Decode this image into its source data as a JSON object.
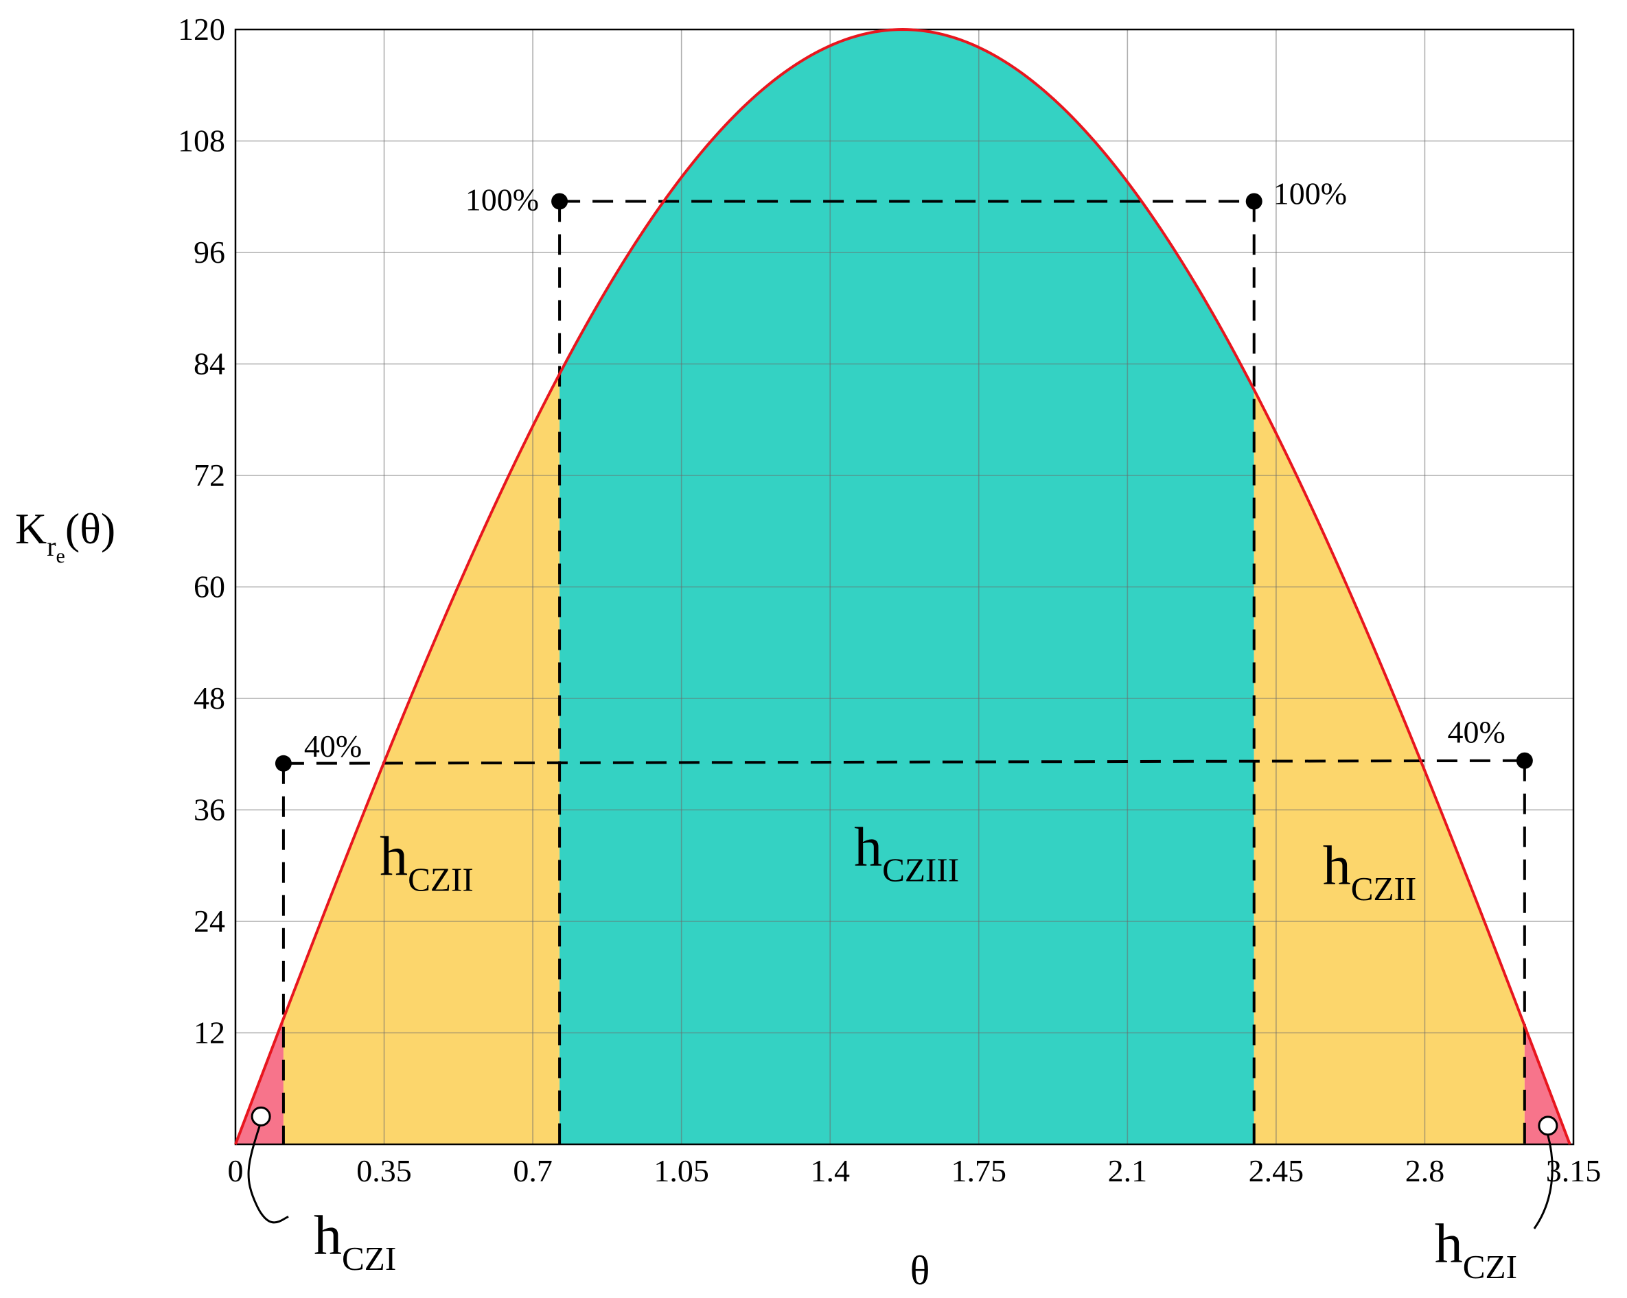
{
  "chart_data": {
    "type": "area",
    "title": "",
    "xlabel": "θ",
    "ylabel": {
      "base": "K",
      "sub": "r",
      "subsub": "e",
      "suffix": "(θ)"
    },
    "xlim": [
      0,
      3.15
    ],
    "ylim": [
      0,
      120
    ],
    "x_ticks": [
      0,
      0.35,
      0.7,
      1.05,
      1.4,
      1.75,
      2.1,
      2.45,
      2.8,
      3.15
    ],
    "x_tick_labels": [
      "0",
      "0.35",
      "0.7",
      "1.05",
      "1.4",
      "1.75",
      "2.1",
      "2.45",
      "2.8",
      "3.15"
    ],
    "y_ticks": [
      12,
      24,
      36,
      48,
      60,
      72,
      84,
      96,
      108,
      120
    ],
    "y_tick_labels": [
      "12",
      "24",
      "36",
      "48",
      "60",
      "72",
      "84",
      "96",
      "108",
      "120"
    ],
    "grid": true,
    "curve": {
      "description": "Kre(θ) = 120·sin(θ)",
      "amplitude": 120,
      "color": "#e8161e"
    },
    "zones": [
      {
        "id": "czi_left",
        "x_range": [
          0,
          0.113
        ],
        "color": "#f7748b"
      },
      {
        "id": "czii_left",
        "x_range": [
          0.113,
          0.763
        ],
        "color": "#fcd66c"
      },
      {
        "id": "cziii",
        "x_range": [
          0.763,
          2.398
        ],
        "color": "#34d2c3"
      },
      {
        "id": "czii_right",
        "x_range": [
          2.398,
          3.035
        ],
        "color": "#fcd66c"
      },
      {
        "id": "czi_right",
        "x_range": [
          3.035,
          3.1416
        ],
        "color": "#f7748b"
      }
    ],
    "threshold_points": [
      {
        "x": 0.113,
        "y": 41,
        "label": "40%"
      },
      {
        "x": 0.763,
        "y": 101.5,
        "label": "100%"
      },
      {
        "x": 2.398,
        "y": 101.5,
        "label": "100%"
      },
      {
        "x": 3.035,
        "y": 41.3,
        "label": "40%"
      }
    ],
    "open_points": [
      {
        "x": 0.06,
        "y": 3,
        "label": {
          "base": "h",
          "sub": "CZI"
        }
      },
      {
        "x": 3.09,
        "y": 2,
        "label": {
          "base": "h",
          "sub": "CZI"
        }
      }
    ],
    "zone_labels": [
      {
        "x": 0.45,
        "y": 29,
        "base": "h",
        "sub": "CZII"
      },
      {
        "x": 1.58,
        "y": 30,
        "base": "h",
        "sub": "CZIII"
      },
      {
        "x": 2.67,
        "y": 28,
        "base": "h",
        "sub": "CZII"
      }
    ]
  }
}
